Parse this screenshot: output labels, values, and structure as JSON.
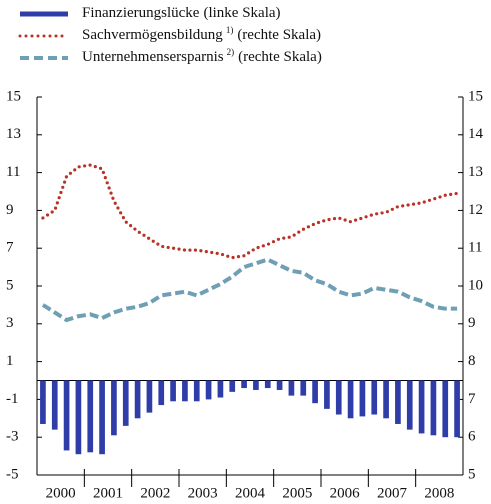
{
  "chart_data": {
    "type": "bar_line_dual",
    "years": [
      "2000",
      "2001",
      "2002",
      "2003",
      "2004",
      "2005",
      "2006",
      "2007",
      "2008"
    ],
    "periods_per_year": 4,
    "ylim": [
      -5,
      15
    ],
    "yticks": [
      15,
      13,
      11,
      9,
      7,
      5,
      3,
      1,
      -1,
      -3,
      -5
    ],
    "y2lim": [
      5,
      15
    ],
    "y2ticks": [
      15,
      14,
      13,
      12,
      11,
      10,
      9,
      8,
      7,
      6,
      5
    ],
    "series": [
      {
        "name": "Finanzierungslücke",
        "scale_label": "(linke Skala)",
        "kind": "bar",
        "color": "#2e3da8",
        "values": [
          -2.3,
          -2.6,
          -3.7,
          -3.9,
          -3.8,
          -3.9,
          -2.9,
          -2.4,
          -2.0,
          -1.7,
          -1.3,
          -1.1,
          -1.1,
          -1.1,
          -1.0,
          -0.9,
          -0.6,
          -0.4,
          -0.5,
          -0.4,
          -0.5,
          -0.8,
          -0.8,
          -1.2,
          -1.5,
          -1.8,
          -2.0,
          -1.9,
          -1.8,
          -2.0,
          -2.3,
          -2.6,
          -2.8,
          -2.9,
          -3.0,
          -3.0
        ]
      },
      {
        "name": "Sachvermögensbildung",
        "footnote": "1)",
        "scale_label": "(rechte Skala)",
        "kind": "dotted",
        "axis": "y2",
        "color": "#b83225",
        "values": [
          11.8,
          12.0,
          12.9,
          13.15,
          13.2,
          13.1,
          12.25,
          11.7,
          11.45,
          11.25,
          11.05,
          11.0,
          10.95,
          10.95,
          10.9,
          10.85,
          10.75,
          10.8,
          11.0,
          11.1,
          11.25,
          11.3,
          11.5,
          11.65,
          11.75,
          11.8,
          11.7,
          11.8,
          11.9,
          11.95,
          12.1,
          12.15,
          12.2,
          12.3,
          12.4,
          12.45
        ]
      },
      {
        "name": "Unternehmensersparnis",
        "footnote": "2)",
        "scale_label": "(rechte Skala)",
        "kind": "dashed",
        "axis": "y2",
        "color": "#6f9fb4",
        "values": [
          9.5,
          9.3,
          9.1,
          9.2,
          9.25,
          9.15,
          9.3,
          9.4,
          9.45,
          9.55,
          9.75,
          9.8,
          9.85,
          9.75,
          9.9,
          10.05,
          10.25,
          10.5,
          10.6,
          10.7,
          10.55,
          10.4,
          10.35,
          10.15,
          10.05,
          9.85,
          9.75,
          9.8,
          9.95,
          9.9,
          9.85,
          9.7,
          9.6,
          9.45,
          9.4,
          9.4
        ]
      }
    ]
  }
}
